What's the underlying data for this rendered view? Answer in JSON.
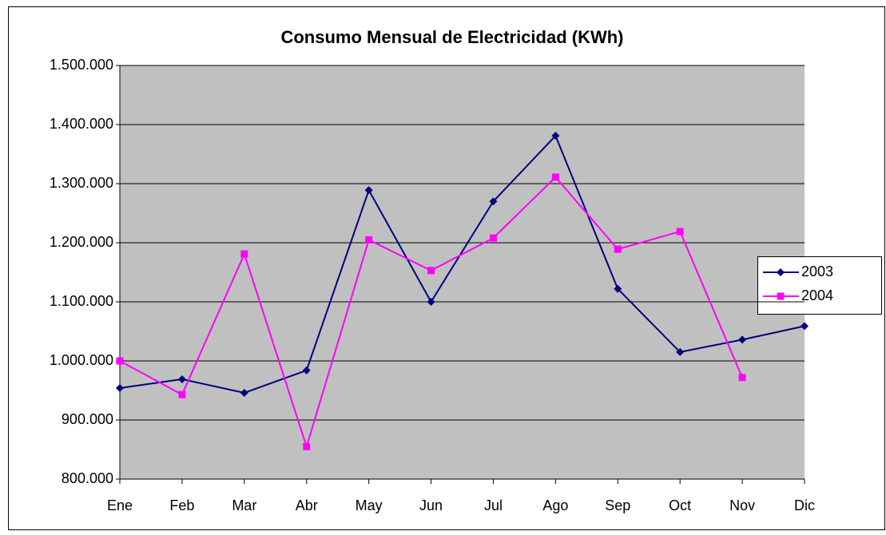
{
  "chart_data": {
    "type": "line",
    "title": "Consumo Mensual de Electricidad (KWh)",
    "categories": [
      "Ene",
      "Feb",
      "Mar",
      "Abr",
      "May",
      "Jun",
      "Jul",
      "Ago",
      "Sep",
      "Oct",
      "Nov",
      "Dic"
    ],
    "series": [
      {
        "name": "2003",
        "color": "#000080",
        "marker": "diamond",
        "values": [
          954000,
          969000,
          946000,
          984000,
          1289000,
          1100000,
          1270000,
          1381000,
          1122000,
          1015000,
          1036000,
          1059000
        ]
      },
      {
        "name": "2004",
        "color": "#ff00ff",
        "marker": "square",
        "values": [
          1000000,
          943000,
          1181000,
          855000,
          1205000,
          1153000,
          1208000,
          1311000,
          1189000,
          1219000,
          972000,
          null
        ]
      }
    ],
    "ylim": [
      800000,
      1500000
    ],
    "yticks": [
      {
        "value": 800000,
        "label": "800.000"
      },
      {
        "value": 900000,
        "label": "900.000"
      },
      {
        "value": 1000000,
        "label": "1.000.000"
      },
      {
        "value": 1100000,
        "label": "1.100.000"
      },
      {
        "value": 1200000,
        "label": "1.200.000"
      },
      {
        "value": 1300000,
        "label": "1.300.000"
      },
      {
        "value": 1400000,
        "label": "1.400.000"
      },
      {
        "value": 1500000,
        "label": "1.500.000"
      }
    ],
    "grid": true,
    "legend": "right"
  }
}
